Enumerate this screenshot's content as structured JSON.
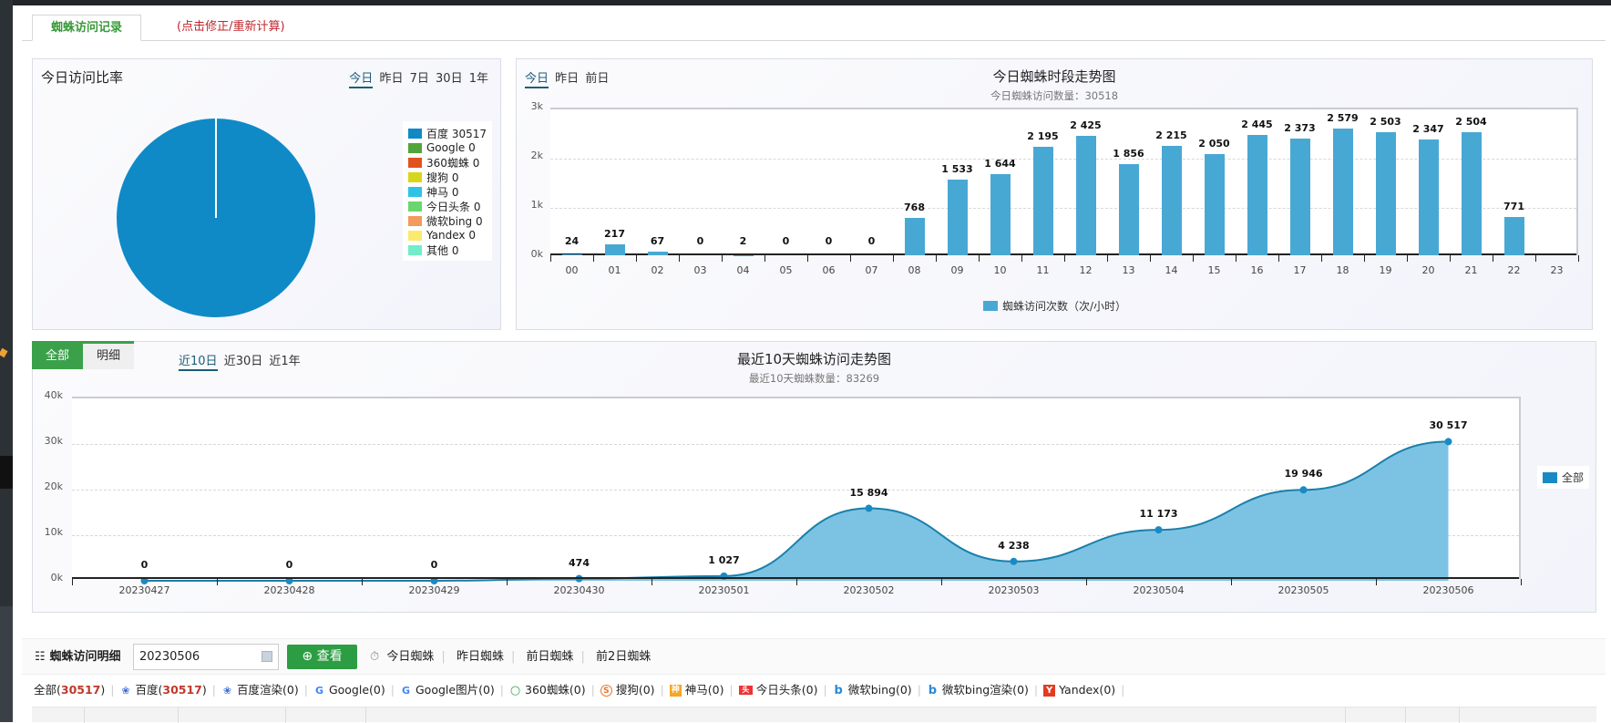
{
  "tabs": {
    "active": "蜘蛛访问记录",
    "recalc_link": "(点击修正/重新计算)"
  },
  "pie_panel": {
    "title": "今日访问比率",
    "ranges": [
      "今日",
      "昨日",
      "7日",
      "30日",
      "1年"
    ],
    "active_range": "今日",
    "legend": [
      {
        "label": "百度 30517",
        "color": "#0f8ac7"
      },
      {
        "label": "Google 0",
        "color": "#52a53a"
      },
      {
        "label": "360蜘蛛 0",
        "color": "#e0531f"
      },
      {
        "label": "搜狗 0",
        "color": "#d8d61a"
      },
      {
        "label": "神马 0",
        "color": "#2ec3e6"
      },
      {
        "label": "今日头条 0",
        "color": "#6ad66e"
      },
      {
        "label": "微软bing 0",
        "color": "#f39a5e"
      },
      {
        "label": "Yandex 0",
        "color": "#fbea6c"
      },
      {
        "label": "其他 0",
        "color": "#73edc9"
      }
    ]
  },
  "bar_panel": {
    "ranges": [
      "今日",
      "昨日",
      "前日"
    ],
    "active_range": "今日",
    "title": "今日蜘蛛时段走势图",
    "subtitle": "今日蜘蛛访问数量：30518",
    "legend": "蜘蛛访问次数（次/小时）",
    "y_ticks": [
      "3k",
      "2k",
      "1k",
      "0k"
    ]
  },
  "line_panel": {
    "switch_tabs": [
      "全部",
      "明细"
    ],
    "ranges": [
      "近10日",
      "近30日",
      "近1年"
    ],
    "active_range": "近10日",
    "title": "最近10天蜘蛛访问走势图",
    "subtitle": "最近10天蜘蛛数量：83269",
    "legend": "全部",
    "y_ticks": [
      "40k",
      "30k",
      "20k",
      "10k",
      "0k"
    ]
  },
  "chart_data": [
    {
      "type": "pie",
      "title": "今日访问比率",
      "categories": [
        "百度",
        "Google",
        "360蜘蛛",
        "搜狗",
        "神马",
        "今日头条",
        "微软bing",
        "Yandex",
        "其他"
      ],
      "values": [
        30517,
        0,
        0,
        0,
        0,
        0,
        0,
        0,
        0
      ],
      "legend_position": "right"
    },
    {
      "type": "bar",
      "title": "今日蜘蛛时段走势图",
      "subtitle": "今日蜘蛛访问数量：30518",
      "categories": [
        "00",
        "01",
        "02",
        "03",
        "04",
        "05",
        "06",
        "07",
        "08",
        "09",
        "10",
        "11",
        "12",
        "13",
        "14",
        "15",
        "16",
        "17",
        "18",
        "19",
        "20",
        "21",
        "22",
        "23"
      ],
      "values": [
        24,
        217,
        67,
        0,
        2,
        0,
        0,
        0,
        768,
        1533,
        1644,
        2195,
        2425,
        1856,
        2215,
        2050,
        2445,
        2373,
        2579,
        2503,
        2347,
        2504,
        771,
        null
      ],
      "labels": [
        "24",
        "217",
        "67",
        "0",
        "2",
        "0",
        "0",
        "0",
        "768",
        "1 533",
        "1 644",
        "2 195",
        "2 425",
        "1 856",
        "2 215",
        "2 050",
        "2 445",
        "2 373",
        "2 579",
        "2 503",
        "2 347",
        "2 504",
        "771",
        ""
      ],
      "series_name": "蜘蛛访问次数（次/小时）",
      "ylim": [
        0,
        3000
      ],
      "y_ticks": [
        "0k",
        "1k",
        "2k",
        "3k"
      ],
      "grid": true,
      "legend_position": "bottom"
    },
    {
      "type": "area",
      "title": "最近10天蜘蛛访问走势图",
      "subtitle": "最近10天蜘蛛数量：83269",
      "categories": [
        "20230427",
        "20230428",
        "20230429",
        "20230430",
        "20230501",
        "20230502",
        "20230503",
        "20230504",
        "20230505",
        "20230506"
      ],
      "values": [
        0,
        0,
        0,
        474,
        1027,
        15894,
        4238,
        11173,
        19946,
        30517
      ],
      "labels": [
        "0",
        "0",
        "0",
        "474",
        "1 027",
        "15 894",
        "4 238",
        "11 173",
        "19 946",
        "30 517"
      ],
      "series_name": "全部",
      "ylim": [
        0,
        40000
      ],
      "y_ticks": [
        "0k",
        "10k",
        "20k",
        "30k",
        "40k"
      ],
      "grid": true,
      "legend_position": "right"
    }
  ],
  "toolbar": {
    "title": "蜘蛛访问明细",
    "date_value": "20230506",
    "view_button": "查看",
    "quick_links": [
      "今日蜘蛛",
      "昨日蜘蛛",
      "前日蜘蛛",
      "前2日蜘蛛"
    ]
  },
  "filters": [
    {
      "name": "全部",
      "count": "30517",
      "icon": "",
      "highlight": true
    },
    {
      "name": "百度",
      "count": "30517",
      "icon": "baidu-paw",
      "highlight": true
    },
    {
      "name": "百度渲染",
      "count": "0",
      "icon": "baidu-paw",
      "highlight": false
    },
    {
      "name": "Google",
      "count": "0",
      "icon": "google-g",
      "highlight": false
    },
    {
      "name": "Google图片",
      "count": "0",
      "icon": "google-g",
      "highlight": false
    },
    {
      "name": "360蜘蛛",
      "count": "0",
      "icon": "360-ring",
      "highlight": false
    },
    {
      "name": "搜狗",
      "count": "0",
      "icon": "sogou-s",
      "highlight": false
    },
    {
      "name": "神马",
      "count": "0",
      "icon": "shenma",
      "highlight": false
    },
    {
      "name": "今日头条",
      "count": "0",
      "icon": "toutiao",
      "highlight": false
    },
    {
      "name": "微软bing",
      "count": "0",
      "icon": "bing-b",
      "highlight": false
    },
    {
      "name": "微软bing渲染",
      "count": "0",
      "icon": "bing-b",
      "highlight": false
    },
    {
      "name": "Yandex",
      "count": "0",
      "icon": "yandex-y",
      "highlight": false
    }
  ]
}
